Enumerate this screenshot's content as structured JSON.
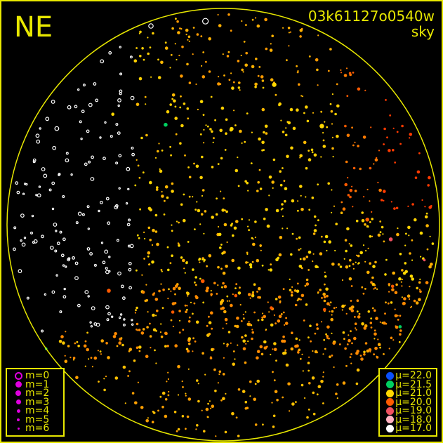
{
  "header": {
    "direction": "NE",
    "frame_id": "03k61127o0540w",
    "subtitle": "sky"
  },
  "legend_magnitude": {
    "items": [
      {
        "label": "m=0",
        "size": 0
      },
      {
        "label": "m=1",
        "size": 1
      },
      {
        "label": "m=2",
        "size": 2
      },
      {
        "label": "m=3",
        "size": 3
      },
      {
        "label": "m=4",
        "size": 4
      },
      {
        "label": "m=5",
        "size": 5
      },
      {
        "label": "m=6",
        "size": 6
      }
    ],
    "color": "#e000e0"
  },
  "legend_brightness": {
    "items": [
      {
        "label": "μ=22.0",
        "color": "#0a50ff"
      },
      {
        "label": "μ=21.5",
        "color": "#00d060"
      },
      {
        "label": "μ=21.0",
        "color": "#ffd800"
      },
      {
        "label": "μ=20.0",
        "color": "#ff5a00"
      },
      {
        "label": "μ=19.0",
        "color": "#f05060"
      },
      {
        "label": "μ=18.0",
        "color": "#ffb0c0"
      },
      {
        "label": "μ=17.0",
        "color": "#ffffff"
      }
    ]
  },
  "chart_data": {
    "type": "scatter",
    "projection": "all-sky polar (zenith at center, horizon circle)",
    "horizon_color": "#e8e800",
    "grid": false,
    "points_note_fields": [
      "azimuth_deg",
      "zenith_distance_deg",
      "m",
      "mu"
    ],
    "points": [
      [
        340,
        88,
        1,
        17.0
      ],
      [
        20,
        62,
        1,
        21.0
      ],
      [
        45,
        58,
        1,
        21.0
      ],
      [
        300,
        80,
        2,
        17.0
      ],
      [
        95,
        70,
        2,
        19.0
      ],
      [
        88,
        60,
        2,
        20.0
      ],
      [
        75,
        55,
        3,
        20.0
      ],
      [
        110,
        75,
        3,
        20.0
      ],
      [
        5,
        40,
        2,
        21.0
      ],
      [
        330,
        48,
        2,
        21.5
      ],
      [
        350,
        52,
        3,
        21.0
      ],
      [
        270,
        70,
        3,
        17.0
      ],
      [
        250,
        65,
        3,
        17.0
      ],
      [
        240,
        55,
        2,
        20.0
      ],
      [
        210,
        42,
        3,
        20.0
      ],
      [
        170,
        30,
        3,
        20.0
      ],
      [
        150,
        40,
        3,
        20.0
      ],
      [
        130,
        55,
        3,
        20.0
      ],
      [
        120,
        85,
        3,
        21.5
      ],
      [
        200,
        25,
        2,
        20.0
      ],
      [
        300,
        35,
        3,
        21.0
      ],
      [
        60,
        30,
        3,
        21.0
      ],
      [
        30,
        20,
        4,
        21.0
      ],
      [
        235,
        90,
        4,
        21.5
      ],
      [
        315,
        65,
        3,
        21.0
      ],
      [
        355,
        85,
        0,
        17.0
      ],
      [
        280,
        45,
        4,
        17.0
      ],
      [
        100,
        85,
        4,
        19.0
      ]
    ]
  }
}
